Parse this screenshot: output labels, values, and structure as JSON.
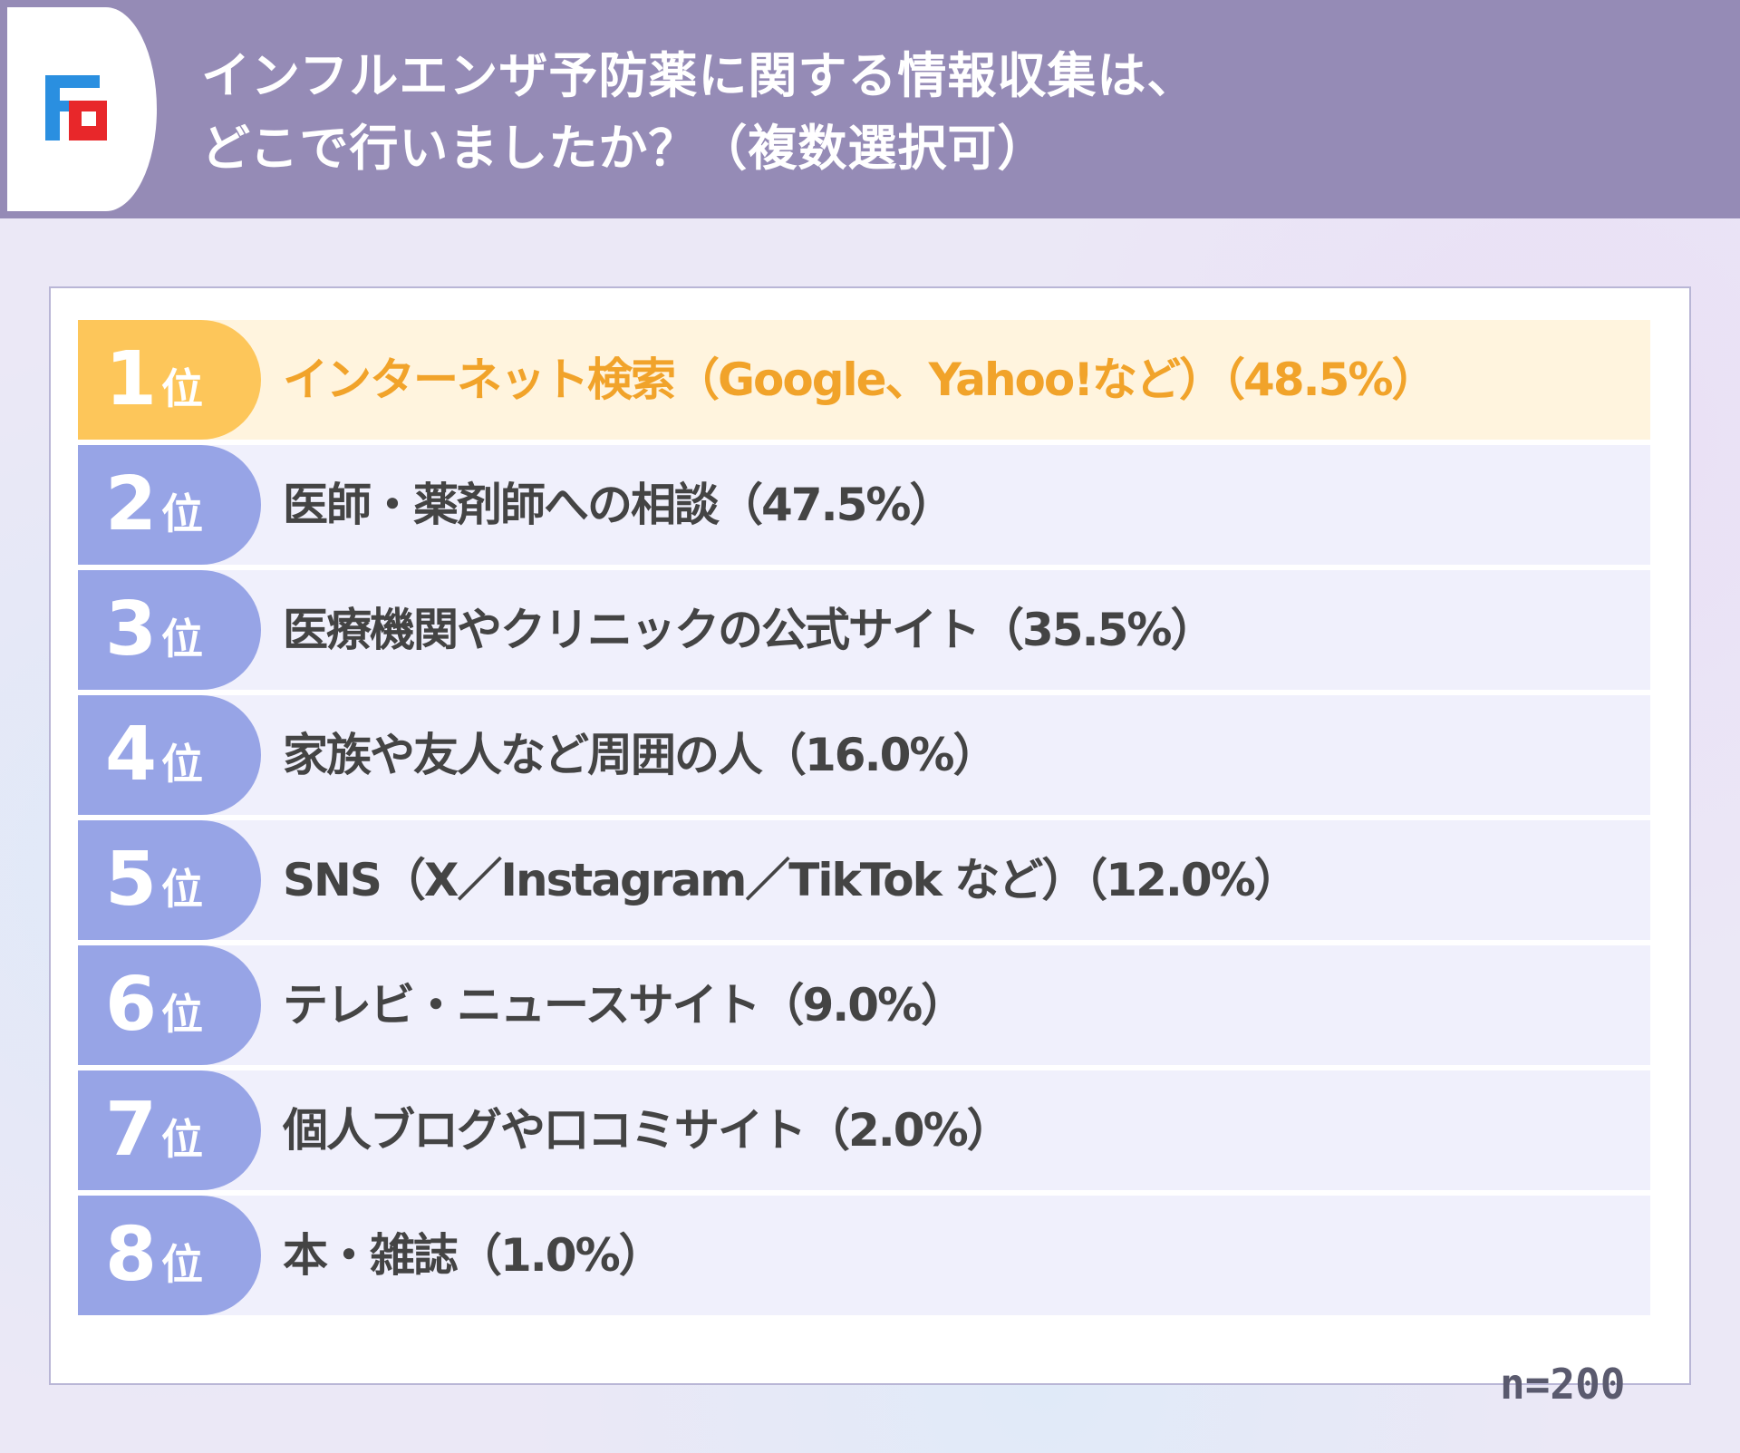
{
  "header": {
    "title_lines": [
      "インフルエンザ予防薬に関する情報収集は、",
      "どこで行いましたか？（複数選択可）"
    ]
  },
  "ranking": {
    "items": [
      {
        "rank": "1",
        "rank_suffix": "位",
        "text": "インターネット検索（Google、Yahoo!など）（48.5%）"
      },
      {
        "rank": "2",
        "rank_suffix": "位",
        "text": "医師・薬剤師への相談（47.5%）"
      },
      {
        "rank": "3",
        "rank_suffix": "位",
        "text": "医療機関やクリニックの公式サイト（35.5%）"
      },
      {
        "rank": "4",
        "rank_suffix": "位",
        "text": "家族や友人など周囲の人（16.0%）"
      },
      {
        "rank": "5",
        "rank_suffix": "位",
        "text": "SNS（X／Instagram／TikTok など）（12.0%）"
      },
      {
        "rank": "6",
        "rank_suffix": "位",
        "text": "テレビ・ニュースサイト（9.0%）"
      },
      {
        "rank": "7",
        "rank_suffix": "位",
        "text": "個人ブログや口コミサイト（2.0%）"
      },
      {
        "rank": "8",
        "rank_suffix": "位",
        "text": "本・雑誌（1.0%）"
      }
    ],
    "sample_size": "n=200"
  }
}
